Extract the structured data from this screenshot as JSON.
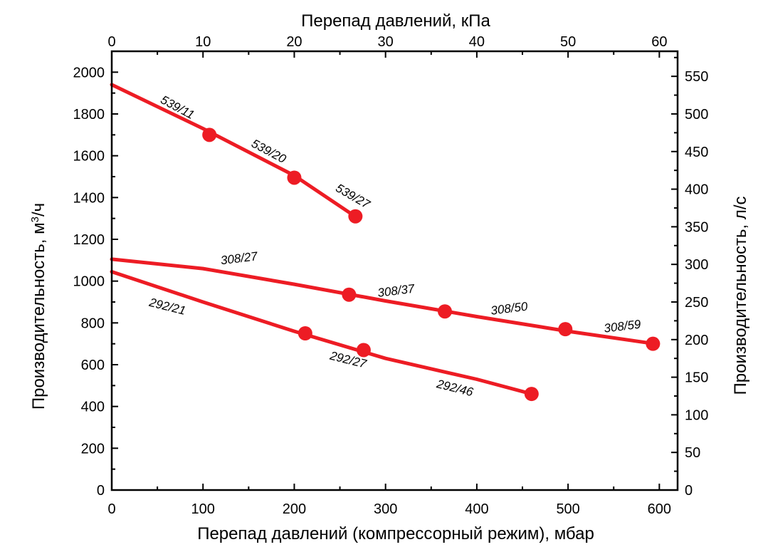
{
  "chart_data": {
    "type": "line",
    "x_bottom": {
      "label": "Перепад давлений (компрессорный режим), мбар",
      "min": 0,
      "max": 620,
      "ticks": [
        0,
        100,
        200,
        300,
        400,
        500,
        600
      ],
      "tick_labels": [
        "0",
        "100",
        "200",
        "300",
        "400",
        "500",
        "600"
      ]
    },
    "x_top": {
      "label": "Перепад давлений, кПа",
      "min": 0,
      "max": 62,
      "ticks": [
        0,
        10,
        20,
        30,
        40,
        50,
        60
      ],
      "tick_labels": [
        "0",
        "10",
        "20",
        "30",
        "40",
        "50",
        "60"
      ]
    },
    "y_left": {
      "label_main": "Производительность, м",
      "label_sup": "3",
      "label_tail": "/ч",
      "min": 0,
      "max": 2100,
      "ticks": [
        0,
        200,
        400,
        600,
        800,
        1000,
        1200,
        1400,
        1600,
        1800,
        2000
      ],
      "tick_labels": [
        "0",
        "200",
        "400",
        "600",
        "800",
        "1000",
        "1200",
        "1400",
        "1600",
        "1800",
        "2000"
      ]
    },
    "y_right": {
      "label": "Производительность, л/с",
      "min": 0,
      "max": 583.3,
      "ticks": [
        0,
        50,
        100,
        150,
        200,
        250,
        300,
        350,
        400,
        450,
        500,
        550
      ],
      "tick_labels": [
        "0",
        "50",
        "100",
        "150",
        "200",
        "250",
        "300",
        "350",
        "400",
        "450",
        "500",
        "550"
      ]
    },
    "series": [
      {
        "line": [
          [
            0,
            1940
          ],
          [
            100,
            1730
          ],
          [
            200,
            1505
          ],
          [
            270,
            1300
          ]
        ],
        "points": [
          [
            107,
            1700
          ],
          [
            200,
            1495
          ],
          [
            267,
            1310
          ]
        ],
        "labels": [
          {
            "text": "539/11",
            "x": 70,
            "y": 1815,
            "angle": 28
          },
          {
            "text": "539/20",
            "x": 170,
            "y": 1605,
            "angle": 28
          },
          {
            "text": "539/27",
            "x": 262,
            "y": 1390,
            "angle": 30
          }
        ]
      },
      {
        "line": [
          [
            0,
            1105
          ],
          [
            100,
            1060
          ],
          [
            200,
            985
          ],
          [
            300,
            905
          ],
          [
            400,
            830
          ],
          [
            500,
            760
          ],
          [
            595,
            700
          ]
        ],
        "points": [
          [
            260,
            935
          ],
          [
            365,
            855
          ],
          [
            497,
            770
          ],
          [
            593,
            700
          ]
        ],
        "labels": [
          {
            "text": "308/27",
            "x": 140,
            "y": 1090,
            "angle": -7
          },
          {
            "text": "308/37",
            "x": 312,
            "y": 935,
            "angle": -7
          },
          {
            "text": "308/50",
            "x": 436,
            "y": 850,
            "angle": -7
          },
          {
            "text": "308/59",
            "x": 560,
            "y": 765,
            "angle": -7
          }
        ]
      },
      {
        "line": [
          [
            0,
            1045
          ],
          [
            100,
            900
          ],
          [
            200,
            760
          ],
          [
            300,
            630
          ],
          [
            400,
            530
          ],
          [
            460,
            460
          ]
        ],
        "points": [
          [
            212,
            750
          ],
          [
            276,
            670
          ],
          [
            460,
            460
          ]
        ],
        "labels": [
          {
            "text": "292/21",
            "x": 60,
            "y": 860,
            "angle": 14
          },
          {
            "text": "292/27",
            "x": 258,
            "y": 605,
            "angle": 14
          },
          {
            "text": "292/46",
            "x": 375,
            "y": 470,
            "angle": 14
          }
        ]
      }
    ],
    "color": "#ed1c24"
  }
}
